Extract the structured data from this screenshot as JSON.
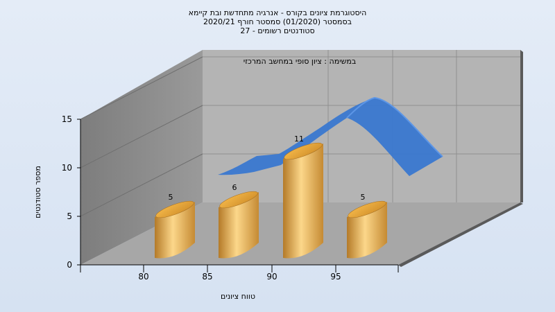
{
  "chart_data": {
    "type": "bar",
    "title_lines": [
      "היסטוגרמת ציונים בקורס - אנרגיה מתחדשת ובת קיימא",
      "בסמסטר  (01/2020)  סמסטר חורף  2020/21",
      "סטודנטים רשומים - 27"
    ],
    "annotation": "במשימה : ציון סופי במחשב המרכזי",
    "xlabel": "טווח ציונים",
    "ylabel": "מספר סטודנטים",
    "ylim": [
      0,
      15
    ],
    "yticks": [
      "0",
      "5",
      "10",
      "15"
    ],
    "xticks": [
      "80",
      "85",
      "90",
      "95"
    ],
    "categories": [
      "80",
      "85",
      "90",
      "95"
    ],
    "values": [
      5,
      6,
      11,
      5
    ],
    "value_labels": [
      "5",
      "6",
      "11",
      "5"
    ],
    "colors": {
      "bar_light": "#fcd78a",
      "bar_mid": "#e0a33e",
      "bar_dark": "#b47a28",
      "curve": "#3a78d0",
      "back_wall": "#b4b4b4",
      "side_wall": "#8a8a8a",
      "floor": "#a7a7a7"
    }
  }
}
